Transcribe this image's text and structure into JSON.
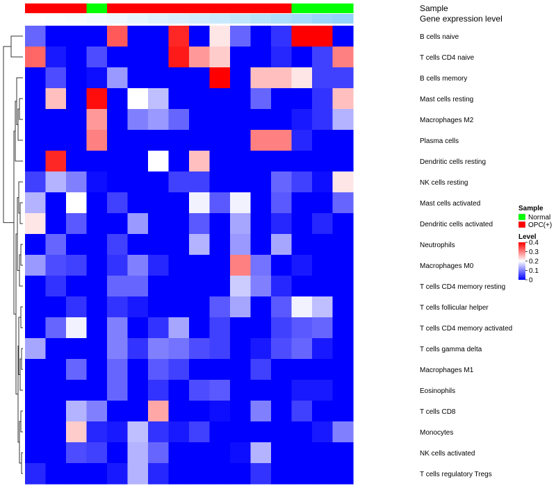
{
  "chart_data": {
    "type": "heatmap",
    "annotation_labels": {
      "sample": "Sample",
      "expression": "Gene expression level"
    },
    "sample_groups": [
      "OPC(+)",
      "OPC(+)",
      "OPC(+)",
      "Normal",
      "OPC(+)",
      "OPC(+)",
      "OPC(+)",
      "OPC(+)",
      "OPC(+)",
      "OPC(+)",
      "OPC(+)",
      "OPC(+)",
      "OPC(+)",
      "Normal",
      "Normal",
      "Normal"
    ],
    "expression_annotation": [
      0.0,
      0.03,
      0.06,
      0.1,
      0.14,
      0.2,
      0.26,
      0.32,
      0.38,
      0.44,
      0.52,
      0.6,
      0.68,
      0.76,
      0.84,
      0.9
    ],
    "rows": [
      "B cells naive",
      "T cells CD4 naive",
      "B cells memory",
      "Mast cells resting",
      "Macrophages M2",
      "Plasma cells",
      "Dendritic cells resting",
      "NK cells resting",
      "Mast cells activated",
      "Dendritic cells activated",
      "Neutrophils",
      "Macrophages M0",
      "T cells CD4 memory resting",
      "T cells follicular helper",
      "T cells CD4 memory activated",
      "T cells gamma delta",
      "Macrophages M1",
      "Eosinophils",
      "T cells CD8",
      "Monocytes",
      "NK cells activated",
      "T cells regulatory  Tregs"
    ],
    "values": [
      [
        0.08,
        0,
        0,
        0,
        0.33,
        0,
        0,
        0.37,
        0,
        0.22,
        0.08,
        0,
        0.04,
        0.4,
        0.4,
        0
      ],
      [
        0.32,
        0.02,
        0,
        0.06,
        0,
        0,
        0,
        0.38,
        0.28,
        0.24,
        0,
        0,
        0.03,
        0,
        0.05,
        0.3
      ],
      [
        0,
        0.06,
        0,
        0.01,
        0.12,
        0,
        0,
        0,
        0,
        0.4,
        0,
        0.25,
        0.25,
        0.22,
        0.05,
        0.05
      ],
      [
        0,
        0.25,
        0,
        0.39,
        0,
        0.2,
        0.15,
        0,
        0,
        0,
        0,
        0.08,
        0,
        0,
        0.04,
        0.25
      ],
      [
        0,
        0,
        0,
        0.28,
        0,
        0.1,
        0.12,
        0.08,
        0,
        0,
        0,
        0,
        0,
        0.02,
        0.04,
        0.14
      ],
      [
        0,
        0,
        0,
        0.3,
        0,
        0,
        0,
        0,
        0,
        0,
        0,
        0.3,
        0.3,
        0.03,
        0,
        0
      ],
      [
        0,
        0.37,
        0,
        0,
        0,
        0,
        0.2,
        0,
        0.25,
        0,
        0,
        0,
        0,
        0,
        0,
        0
      ],
      [
        0.05,
        0.14,
        0.1,
        0.01,
        0,
        0,
        0,
        0.05,
        0.05,
        0,
        0,
        0,
        0.08,
        0.05,
        0.01,
        0.22
      ],
      [
        0.14,
        0,
        0.2,
        0,
        0.05,
        0,
        0,
        0,
        0.19,
        0.07,
        0.19,
        0,
        0.07,
        0,
        0,
        0.08
      ],
      [
        0.22,
        0,
        0.07,
        0,
        0,
        0.12,
        0,
        0,
        0.07,
        0,
        0.13,
        0,
        0.03,
        0,
        0.03,
        0
      ],
      [
        0,
        0.08,
        0,
        0,
        0.05,
        0,
        0,
        0,
        0.14,
        0,
        0.12,
        0,
        0.13,
        0,
        0,
        0
      ],
      [
        0.12,
        0.06,
        0.05,
        0,
        0.04,
        0.1,
        0.03,
        0,
        0,
        0,
        0.3,
        0.09,
        0,
        0.02,
        0,
        0
      ],
      [
        0,
        0.04,
        0,
        0,
        0.08,
        0.08,
        0,
        0,
        0,
        0,
        0.16,
        0.1,
        0.03,
        0,
        0,
        0
      ],
      [
        0,
        0,
        0.04,
        0,
        0.04,
        0.02,
        0,
        0,
        0,
        0.07,
        0.13,
        0,
        0.07,
        0.19,
        0.15,
        0
      ],
      [
        0,
        0.08,
        0.19,
        0,
        0.1,
        0,
        0.04,
        0.13,
        0,
        0.05,
        0,
        0,
        0.05,
        0.07,
        0.08,
        0
      ],
      [
        0.13,
        0,
        0,
        0,
        0.1,
        0.04,
        0.1,
        0.09,
        0.06,
        0.05,
        0,
        0.02,
        0.06,
        0.08,
        0.02,
        0
      ],
      [
        0,
        0,
        0.08,
        0,
        0.08,
        0,
        0.07,
        0.05,
        0,
        0,
        0,
        0.05,
        0,
        0,
        0,
        0
      ],
      [
        0,
        0,
        0,
        0,
        0.08,
        0,
        0.04,
        0,
        0.06,
        0.07,
        0,
        0,
        0,
        0.02,
        0.02,
        0
      ],
      [
        0,
        0,
        0.14,
        0.1,
        0,
        0,
        0.27,
        0,
        0,
        0.01,
        0,
        0.1,
        0,
        0.05,
        0,
        0
      ],
      [
        0,
        0,
        0.24,
        0.03,
        0.02,
        0.15,
        0.04,
        0.02,
        0.05,
        0,
        0,
        0,
        0,
        0,
        0.02,
        0.1
      ],
      [
        0,
        0,
        0.06,
        0.05,
        0,
        0.14,
        0.08,
        0,
        0,
        0,
        0.01,
        0.14,
        0,
        0,
        0,
        0
      ],
      [
        0.03,
        0,
        0,
        0,
        0.02,
        0.14,
        0.03,
        0,
        0,
        0,
        0,
        0.04,
        0,
        0,
        0,
        0
      ]
    ],
    "color_scale": {
      "min": 0,
      "mid": 0.2,
      "max": 0.4,
      "low": "#0000ff",
      "midColor": "#ffffff",
      "high": "#ff0000"
    },
    "legend": {
      "position": "right",
      "sample": {
        "title": "Sample",
        "items": [
          {
            "label": "Normal",
            "color": "#00ff00"
          },
          {
            "label": "OPC(+)",
            "color": "#ff0000"
          }
        ]
      },
      "level": {
        "title": "Level",
        "ticks": [
          "0.4",
          "0.3",
          "0.2",
          "0.1",
          "0"
        ],
        "tick_values": [
          0.4,
          0.3,
          0.2,
          0.1,
          0
        ]
      }
    },
    "dendrogram": "rows"
  }
}
